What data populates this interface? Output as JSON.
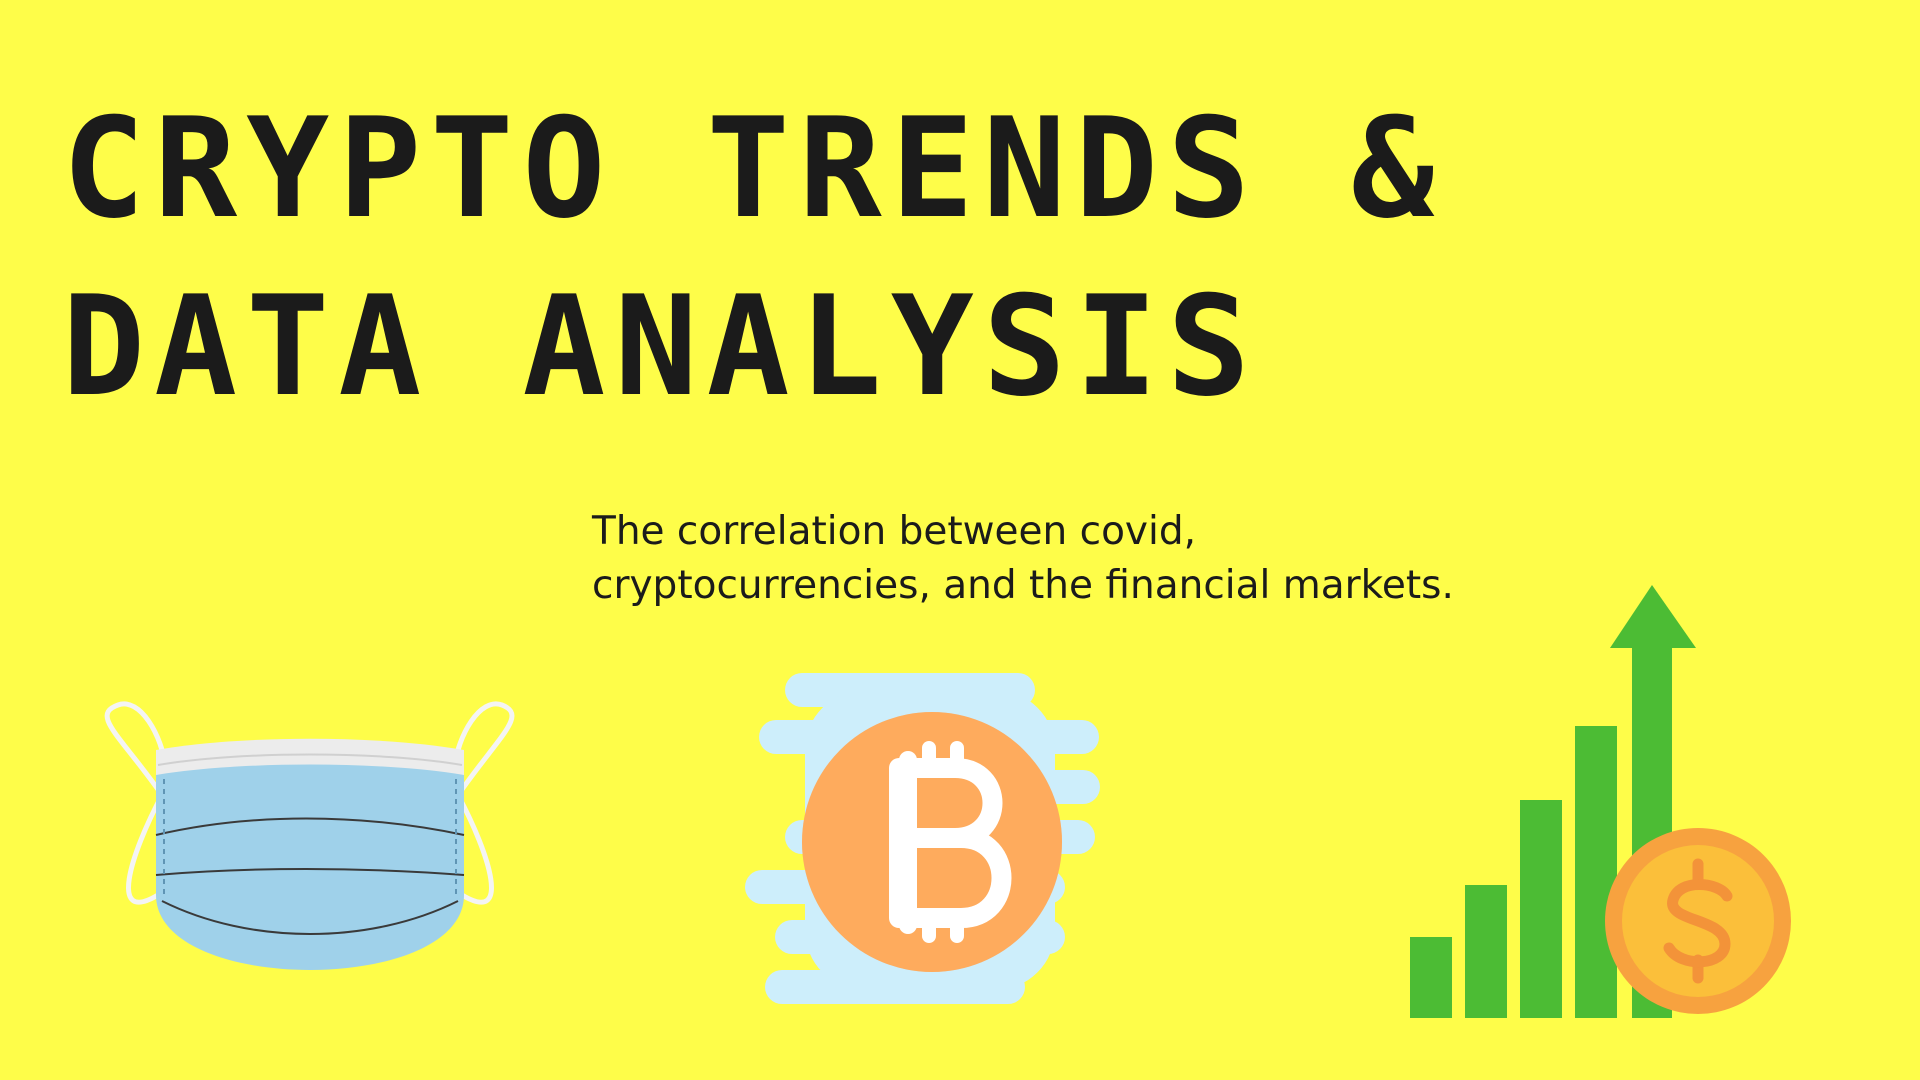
{
  "slide": {
    "title_lines": [
      "CRYPTO TRENDS &",
      "DATA ANALYSIS"
    ],
    "subtitle_lines": [
      "The correlation between covid,",
      "cryptocurrencies, and the financial markets."
    ]
  },
  "theme": {
    "background": "#fefd49",
    "text": "#1b1b1b",
    "mask_blue": "#9fd1ea",
    "bitcoin_orange": "#fea85e",
    "cloud_blue": "#cdeefb",
    "chart_green": "#4cbc34",
    "coin_orange": "#f7a23f",
    "coin_inner": "#fbbf3a"
  },
  "icons": [
    "face-mask-icon",
    "bitcoin-icon",
    "growth-chart-icon",
    "dollar-coin-icon"
  ],
  "growth_chart": {
    "bar_levels": [
      0.22,
      0.36,
      0.59,
      0.79,
      1.0
    ],
    "arrow": "up"
  }
}
